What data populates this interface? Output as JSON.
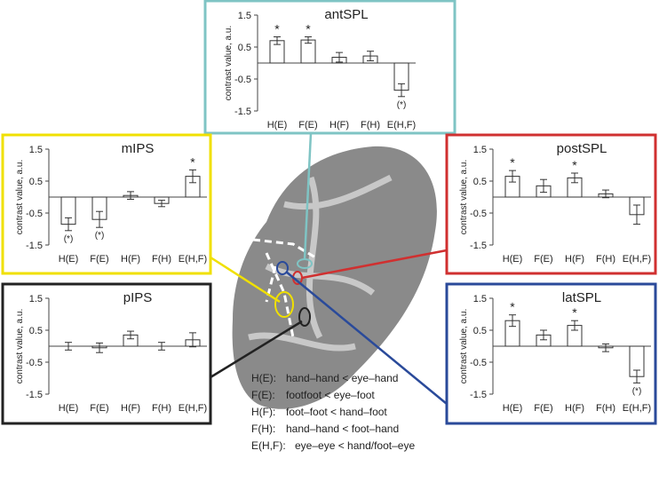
{
  "chart_data": [
    {
      "type": "bar",
      "title": "antSPL",
      "y_label": "contrast value, a.u.",
      "color": "#7fc4c4",
      "categories": [
        "H(E)",
        "F(E)",
        "H(F)",
        "F(H)",
        "E(H,F)"
      ],
      "values": [
        0.7,
        0.72,
        0.18,
        0.22,
        -0.85
      ],
      "errors": [
        0.12,
        0.1,
        0.15,
        0.15,
        0.2
      ],
      "annotations": [
        "*",
        "*",
        null,
        null,
        "(*)"
      ],
      "ylim": [
        -1.5,
        1.5
      ],
      "yticks": [
        1.5,
        0.5,
        -0.5,
        -1.5
      ]
    },
    {
      "type": "bar",
      "title": "mIPS",
      "y_label": "contrast value, a.u.",
      "color": "#f0e000",
      "categories": [
        "H(E)",
        "F(E)",
        "H(F)",
        "F(H)",
        "E(H,F)"
      ],
      "values": [
        -0.85,
        -0.7,
        0.05,
        -0.2,
        0.65
      ],
      "errors": [
        0.2,
        0.25,
        0.12,
        0.1,
        0.2
      ],
      "annotations": [
        "(*)",
        "(*)",
        null,
        null,
        "*"
      ],
      "ylim": [
        -1.5,
        1.5
      ],
      "yticks": [
        1.5,
        0.5,
        -0.5,
        -1.5
      ]
    },
    {
      "type": "bar",
      "title": "pIPS",
      "y_label": "contrast value, a.u.",
      "color": "#222222",
      "categories": [
        "H(E)",
        "F(E)",
        "H(F)",
        "F(H)",
        "E(H,F)"
      ],
      "values": [
        0,
        -0.05,
        0.35,
        0,
        0.2
      ],
      "errors": [
        0.12,
        0.15,
        0.12,
        0.12,
        0.22
      ],
      "annotations": [
        null,
        null,
        null,
        null,
        null
      ],
      "ylim": [
        -1.5,
        1.5
      ],
      "yticks": [
        1.5,
        0.5,
        -0.5,
        -1.5
      ]
    },
    {
      "type": "bar",
      "title": "postSPL",
      "y_label": "contrast value, a.u.",
      "color": "#d03030",
      "categories": [
        "H(E)",
        "F(E)",
        "H(F)",
        "F(H)",
        "E(H,F)"
      ],
      "values": [
        0.65,
        0.35,
        0.6,
        0.1,
        -0.55
      ],
      "errors": [
        0.18,
        0.2,
        0.15,
        0.12,
        0.3
      ],
      "annotations": [
        "*",
        null,
        "*",
        null,
        null
      ],
      "ylim": [
        -1.5,
        1.5
      ],
      "yticks": [
        1.5,
        0.5,
        -0.5,
        -1.5
      ]
    },
    {
      "type": "bar",
      "title": "latSPL",
      "y_label": "contrast value, a.u.",
      "color": "#2a4a9a",
      "categories": [
        "H(E)",
        "F(E)",
        "H(F)",
        "F(H)",
        "E(H,F)"
      ],
      "values": [
        0.8,
        0.35,
        0.65,
        -0.05,
        -0.95
      ],
      "errors": [
        0.18,
        0.15,
        0.15,
        0.12,
        0.2
      ],
      "annotations": [
        "*",
        null,
        "*",
        null,
        "(*)"
      ],
      "ylim": [
        -1.5,
        1.5
      ],
      "yticks": [
        1.5,
        0.5,
        -0.5,
        -1.5
      ]
    }
  ],
  "key": [
    [
      "H(E):",
      "hand–hand < eye–hand"
    ],
    [
      "F(E):",
      "footfoot < eye–foot"
    ],
    [
      "H(F):",
      "foot–foot < hand–foot"
    ],
    [
      "F(H):",
      "hand–hand < foot–hand"
    ],
    [
      "E(H,F):",
      "eye–eye < hand/foot–eye"
    ]
  ]
}
